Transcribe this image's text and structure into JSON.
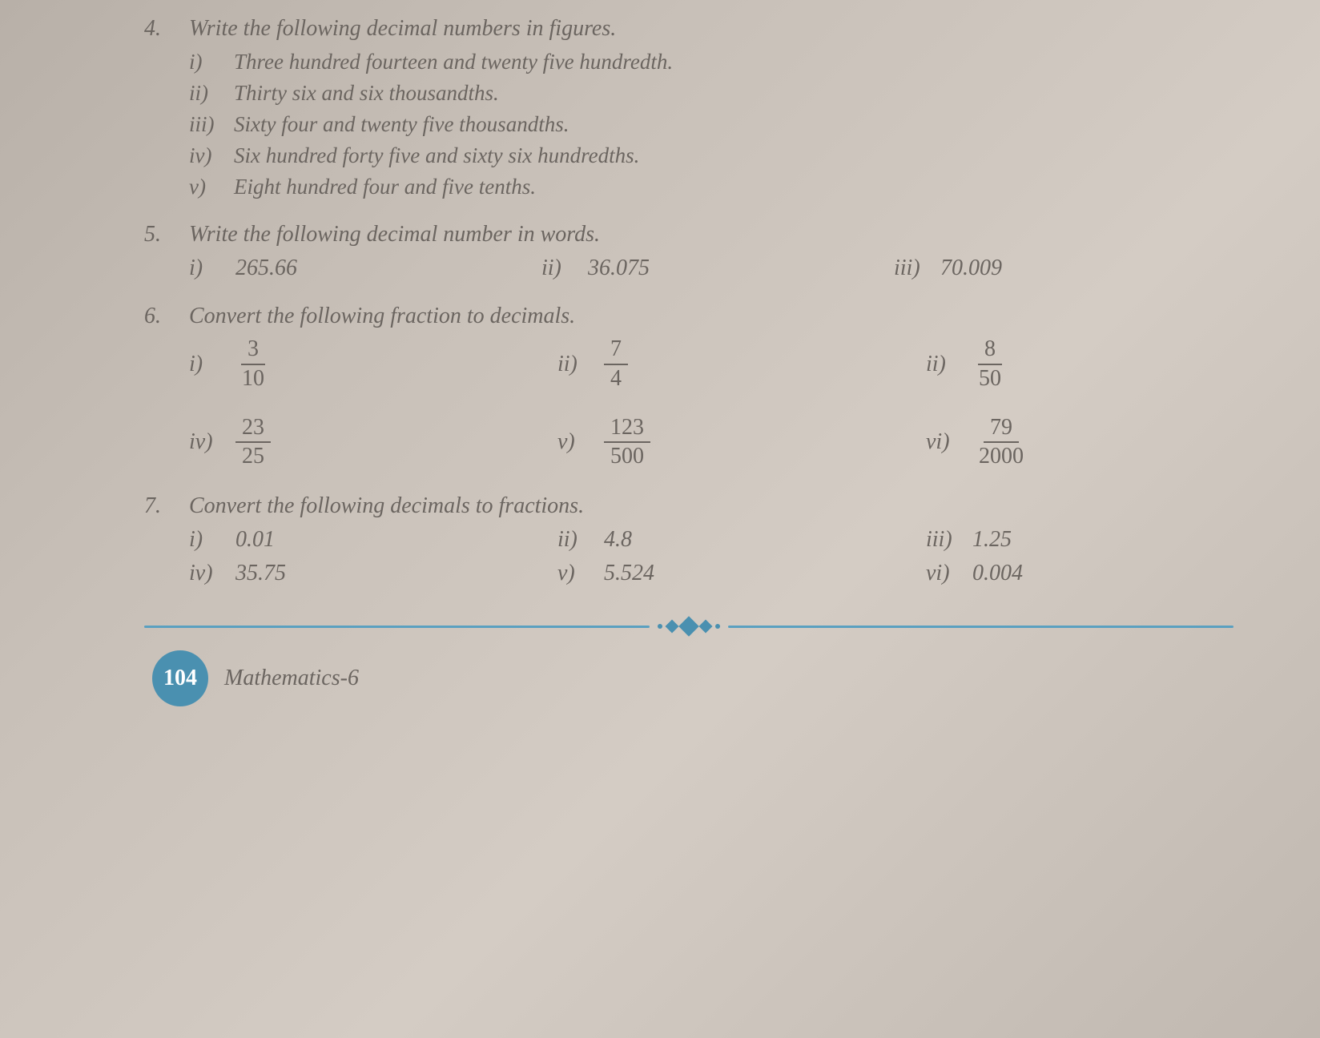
{
  "q4": {
    "num": "4.",
    "title": "Write the following decimal numbers in figures.",
    "items": [
      {
        "label": "i)",
        "text": "Three hundred fourteen and twenty five hundredth."
      },
      {
        "label": "ii)",
        "text": "Thirty six and six thousandths."
      },
      {
        "label": "iii)",
        "text": "Sixty four and twenty five thousandths."
      },
      {
        "label": "iv)",
        "text": "Six hundred forty five and sixty six hundredths."
      },
      {
        "label": "v)",
        "text": "Eight hundred four and five tenths."
      }
    ]
  },
  "q5": {
    "num": "5.",
    "title": "Write the following decimal number in words.",
    "items": [
      {
        "label": "i)",
        "text": "265.66"
      },
      {
        "label": "ii)",
        "text": "36.075"
      },
      {
        "label": "iii)",
        "text": "70.009"
      }
    ]
  },
  "q6": {
    "num": "6.",
    "title": "Convert the following fraction to decimals.",
    "row1": [
      {
        "label": "i)",
        "n": "3",
        "d": "10"
      },
      {
        "label": "ii)",
        "n": "7",
        "d": "4"
      },
      {
        "label": "ii)",
        "n": "8",
        "d": "50"
      }
    ],
    "row2": [
      {
        "label": "iv)",
        "n": "23",
        "d": "25"
      },
      {
        "label": "v)",
        "n": "123",
        "d": "500"
      },
      {
        "label": "vi)",
        "n": "79",
        "d": "2000"
      }
    ]
  },
  "q7": {
    "num": "7.",
    "title": "Convert the following decimals to fractions.",
    "row1": [
      {
        "label": "i)",
        "text": "0.01"
      },
      {
        "label": "ii)",
        "text": "4.8"
      },
      {
        "label": "iii)",
        "text": "1.25"
      }
    ],
    "row2": [
      {
        "label": "iv)",
        "text": "35.75"
      },
      {
        "label": "v)",
        "text": "5.524"
      },
      {
        "label": "vi)",
        "text": "0.004"
      }
    ]
  },
  "footer": {
    "page": "104",
    "title": "Mathematics-6"
  }
}
